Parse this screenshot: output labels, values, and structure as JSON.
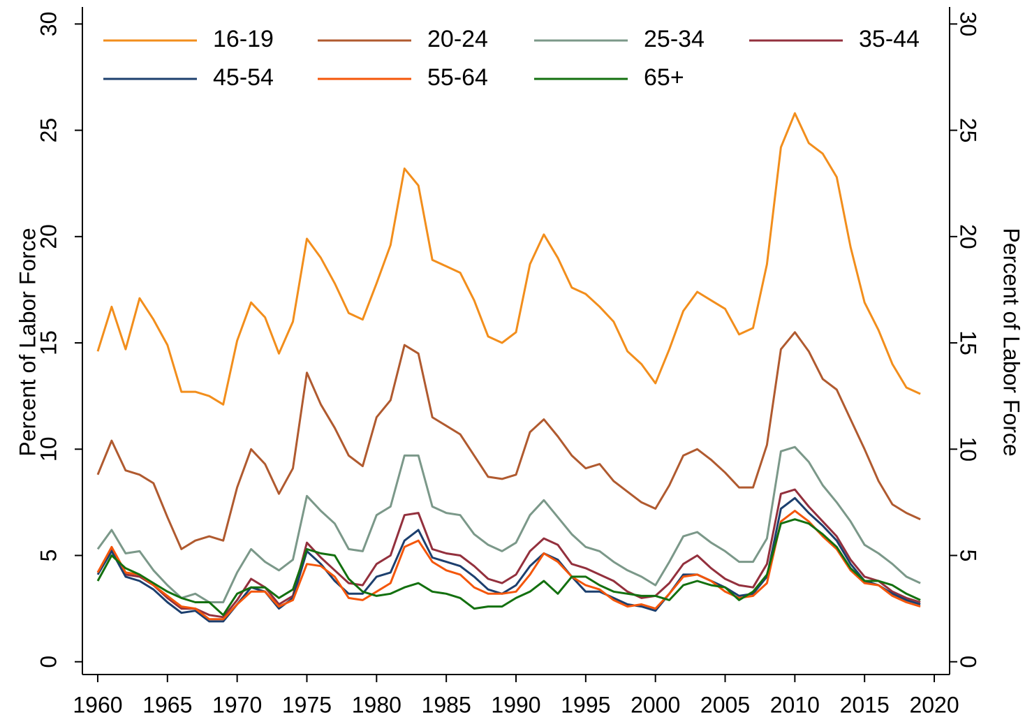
{
  "chart_data": {
    "type": "line",
    "y_label": "Percent of Labor Force",
    "y2_label": "Percent of Labor Force",
    "x": [
      1960,
      1961,
      1962,
      1963,
      1964,
      1965,
      1966,
      1967,
      1968,
      1969,
      1970,
      1971,
      1972,
      1973,
      1974,
      1975,
      1976,
      1977,
      1978,
      1979,
      1980,
      1981,
      1982,
      1983,
      1984,
      1985,
      1986,
      1987,
      1988,
      1989,
      1990,
      1991,
      1992,
      1993,
      1994,
      1995,
      1996,
      1997,
      1998,
      1999,
      2000,
      2001,
      2002,
      2003,
      2004,
      2005,
      2006,
      2007,
      2008,
      2009,
      2010,
      2011,
      2012,
      2013,
      2014,
      2015,
      2016,
      2017,
      2018,
      2019
    ],
    "xlim": [
      1958.9,
      2021.1
    ],
    "xticks": [
      1960,
      1965,
      1970,
      1975,
      1980,
      1985,
      1990,
      1995,
      2000,
      2005,
      2010,
      2015,
      2020
    ],
    "ylim": [
      -0.6,
      30.8
    ],
    "yticks": [
      0,
      5,
      10,
      15,
      20,
      25,
      30
    ],
    "y2lim": [
      -0.6,
      30.8
    ],
    "y2ticks": [
      0,
      5,
      10,
      15,
      20,
      25,
      30
    ],
    "legend": "top",
    "series": [
      {
        "name": "16-19",
        "color": "#f28e1c",
        "values": [
          14.6,
          16.7,
          14.7,
          17.1,
          16.1,
          14.9,
          12.7,
          12.7,
          12.5,
          12.1,
          15.1,
          16.9,
          16.2,
          14.5,
          16.0,
          19.9,
          19.0,
          17.8,
          16.4,
          16.1,
          17.8,
          19.6,
          23.2,
          22.4,
          18.9,
          18.6,
          18.3,
          17.0,
          15.3,
          15.0,
          15.5,
          18.7,
          20.1,
          19.0,
          17.6,
          17.3,
          16.7,
          16.0,
          14.6,
          14.0,
          13.1,
          14.7,
          16.5,
          17.4,
          17.0,
          16.6,
          15.4,
          15.7,
          18.7,
          24.2,
          25.8,
          24.4,
          23.9,
          22.8,
          19.5,
          16.9,
          15.6,
          14.0,
          12.9,
          12.6
        ]
      },
      {
        "name": "20-24",
        "color": "#b05a2f",
        "values": [
          8.8,
          10.4,
          9.0,
          8.8,
          8.4,
          6.8,
          5.3,
          5.7,
          5.9,
          5.7,
          8.2,
          10.0,
          9.3,
          7.9,
          9.1,
          13.6,
          12.1,
          11.0,
          9.7,
          9.2,
          11.5,
          12.3,
          14.9,
          14.5,
          11.5,
          11.1,
          10.7,
          9.7,
          8.7,
          8.6,
          8.8,
          10.8,
          11.4,
          10.6,
          9.7,
          9.1,
          9.3,
          8.5,
          8.0,
          7.5,
          7.2,
          8.3,
          9.7,
          10.0,
          9.5,
          8.9,
          8.2,
          8.2,
          10.2,
          14.7,
          15.5,
          14.6,
          13.3,
          12.8,
          11.4,
          10.0,
          8.5,
          7.4,
          7.0,
          6.7
        ]
      },
      {
        "name": "25-34",
        "color": "#7b9889",
        "values": [
          5.3,
          6.2,
          5.1,
          5.2,
          4.3,
          3.6,
          3.0,
          3.2,
          2.8,
          2.8,
          4.2,
          5.3,
          4.7,
          4.3,
          4.8,
          7.8,
          7.1,
          6.5,
          5.3,
          5.2,
          6.9,
          7.3,
          9.7,
          9.7,
          7.3,
          7.0,
          6.9,
          6.0,
          5.5,
          5.2,
          5.6,
          6.9,
          7.6,
          6.8,
          6.0,
          5.4,
          5.2,
          4.7,
          4.3,
          4.0,
          3.6,
          4.7,
          5.9,
          6.1,
          5.6,
          5.2,
          4.7,
          4.7,
          5.8,
          9.9,
          10.1,
          9.4,
          8.3,
          7.5,
          6.6,
          5.5,
          5.1,
          4.6,
          4.0,
          3.7
        ]
      },
      {
        "name": "35-44",
        "color": "#93303d",
        "values": [
          4.2,
          5.3,
          4.1,
          4.0,
          3.6,
          3.0,
          2.5,
          2.5,
          2.2,
          2.1,
          2.9,
          3.9,
          3.5,
          2.7,
          3.1,
          5.6,
          4.9,
          4.3,
          3.7,
          3.6,
          4.6,
          5.0,
          6.9,
          7.0,
          5.3,
          5.1,
          5.0,
          4.5,
          3.9,
          3.7,
          4.1,
          5.2,
          5.8,
          5.5,
          4.6,
          4.4,
          4.1,
          3.8,
          3.3,
          3.0,
          3.1,
          3.7,
          4.6,
          5.0,
          4.4,
          3.9,
          3.6,
          3.5,
          4.6,
          7.9,
          8.1,
          7.3,
          6.6,
          5.9,
          4.8,
          4.0,
          3.8,
          3.3,
          3.0,
          2.8
        ]
      },
      {
        "name": "45-54",
        "color": "#1c3f6e",
        "values": [
          4.1,
          5.2,
          4.0,
          3.8,
          3.4,
          2.8,
          2.3,
          2.4,
          1.9,
          1.9,
          2.7,
          3.5,
          3.3,
          2.5,
          3.0,
          5.2,
          4.6,
          3.8,
          3.2,
          3.2,
          4.0,
          4.2,
          5.7,
          6.2,
          4.9,
          4.7,
          4.5,
          4.0,
          3.4,
          3.2,
          3.6,
          4.5,
          5.1,
          4.8,
          4.0,
          3.3,
          3.3,
          3.0,
          2.7,
          2.6,
          2.4,
          3.2,
          4.1,
          4.1,
          3.8,
          3.5,
          3.1,
          3.2,
          4.0,
          7.2,
          7.7,
          7.0,
          6.4,
          5.7,
          4.6,
          3.8,
          3.6,
          3.2,
          2.9,
          2.7
        ]
      },
      {
        "name": "55-64",
        "color": "#f4560a",
        "values": [
          4.2,
          5.4,
          4.2,
          4.1,
          3.6,
          3.1,
          2.6,
          2.5,
          2.0,
          2.0,
          2.7,
          3.3,
          3.3,
          2.6,
          2.9,
          4.6,
          4.5,
          4.0,
          3.0,
          2.9,
          3.3,
          3.7,
          5.4,
          5.7,
          4.7,
          4.3,
          4.1,
          3.5,
          3.2,
          3.2,
          3.3,
          4.1,
          5.1,
          4.7,
          4.0,
          3.6,
          3.4,
          2.9,
          2.6,
          2.7,
          2.5,
          3.2,
          4.0,
          4.1,
          3.8,
          3.3,
          3.0,
          3.1,
          3.7,
          6.6,
          7.1,
          6.6,
          5.9,
          5.3,
          4.3,
          3.7,
          3.6,
          3.1,
          2.8,
          2.6
        ]
      },
      {
        "name": "65+",
        "color": "#13700f",
        "values": [
          3.8,
          5.0,
          4.4,
          4.1,
          3.7,
          3.3,
          3.0,
          2.8,
          2.8,
          2.2,
          3.2,
          3.5,
          3.5,
          3.0,
          3.4,
          5.3,
          5.1,
          5.0,
          3.9,
          3.3,
          3.1,
          3.2,
          3.5,
          3.7,
          3.3,
          3.2,
          3.0,
          2.5,
          2.6,
          2.6,
          3.0,
          3.3,
          3.8,
          3.2,
          4.0,
          4.0,
          3.6,
          3.3,
          3.2,
          3.1,
          3.1,
          2.9,
          3.6,
          3.8,
          3.6,
          3.5,
          2.9,
          3.3,
          4.1,
          6.5,
          6.7,
          6.5,
          6.0,
          5.4,
          4.4,
          3.8,
          3.8,
          3.6,
          3.2,
          2.9
        ]
      }
    ]
  }
}
